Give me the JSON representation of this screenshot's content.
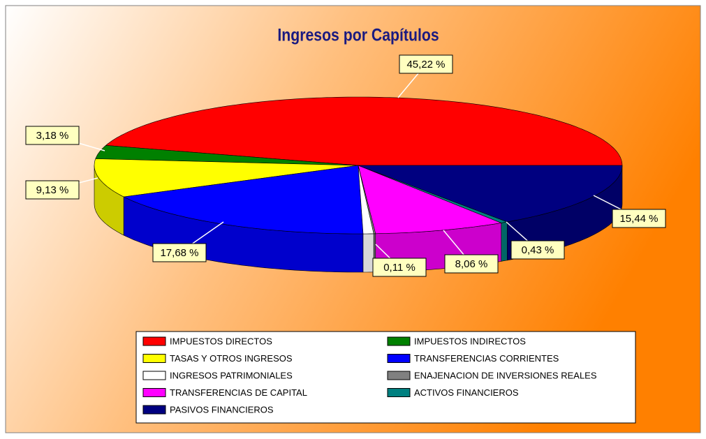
{
  "chart_data": {
    "type": "pie3d",
    "title": "Ingresos por Capítulos",
    "categories": [
      "IMPUESTOS DIRECTOS",
      "IMPUESTOS INDIRECTOS",
      "TASAS Y OTROS INGRESOS",
      "TRANSFERENCIAS CORRIENTES",
      "INGRESOS PATRIMONIALES",
      "ENAJENACION DE INVERSIONES REALES",
      "TRANSFERENCIAS DE CAPITAL",
      "ACTIVOS FINANCIEROS",
      "PASIVOS FINANCIEROS"
    ],
    "values": [
      45.22,
      3.18,
      9.13,
      17.68,
      0.64,
      0.11,
      8.06,
      0.43,
      15.44
    ],
    "value_labels": [
      "45,22 %",
      "3,18 %",
      "9,13 %",
      "17,68 %",
      null,
      "0,11 %",
      "8,06 %",
      "0,43 %",
      "15,44 %"
    ],
    "colors": [
      "#ff0000",
      "#008000",
      "#ffff00",
      "#0000ff",
      "#ffffff",
      "#808080",
      "#ff00ff",
      "#008080",
      "#000080"
    ],
    "legend": "bottom"
  }
}
